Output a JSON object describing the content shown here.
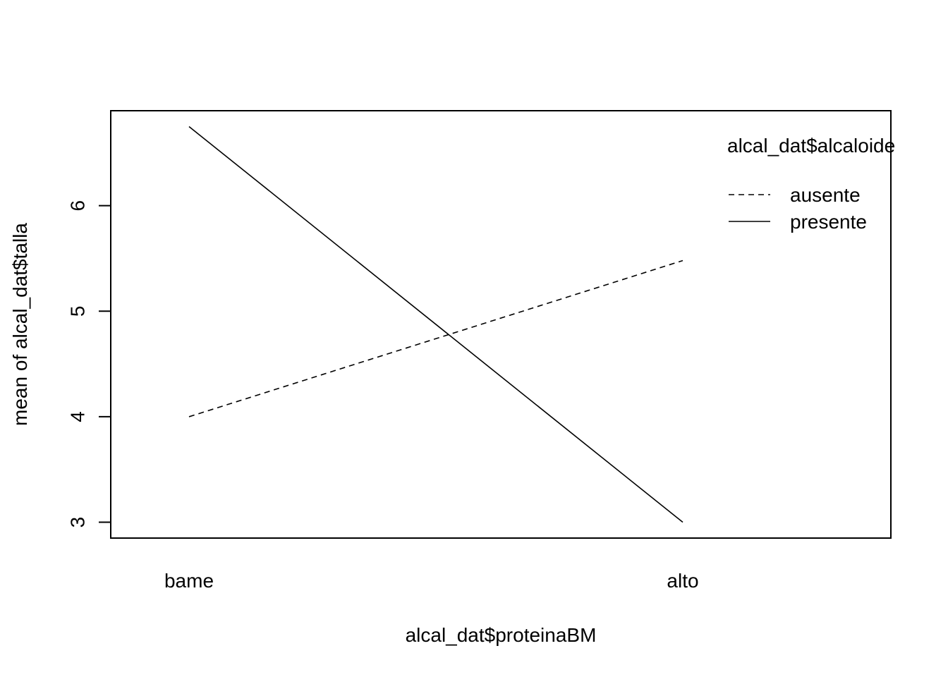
{
  "chart_data": {
    "type": "line",
    "xlabel": "alcal_dat$proteinaBM",
    "ylabel": "mean of  alcal_dat$talla",
    "categories": [
      "bame",
      "alto"
    ],
    "y_ticks": [
      "3",
      "4",
      "5",
      "6"
    ],
    "ylim": [
      2.85,
      6.9
    ],
    "legend": {
      "title": "alcal_dat$alcaloide",
      "position": "top-right"
    },
    "series": [
      {
        "name": "ausente",
        "line_style": "dashed",
        "values": [
          4.0,
          5.48
        ]
      },
      {
        "name": "presente",
        "line_style": "solid",
        "values": [
          6.75,
          3.0
        ]
      }
    ],
    "grid": false
  }
}
